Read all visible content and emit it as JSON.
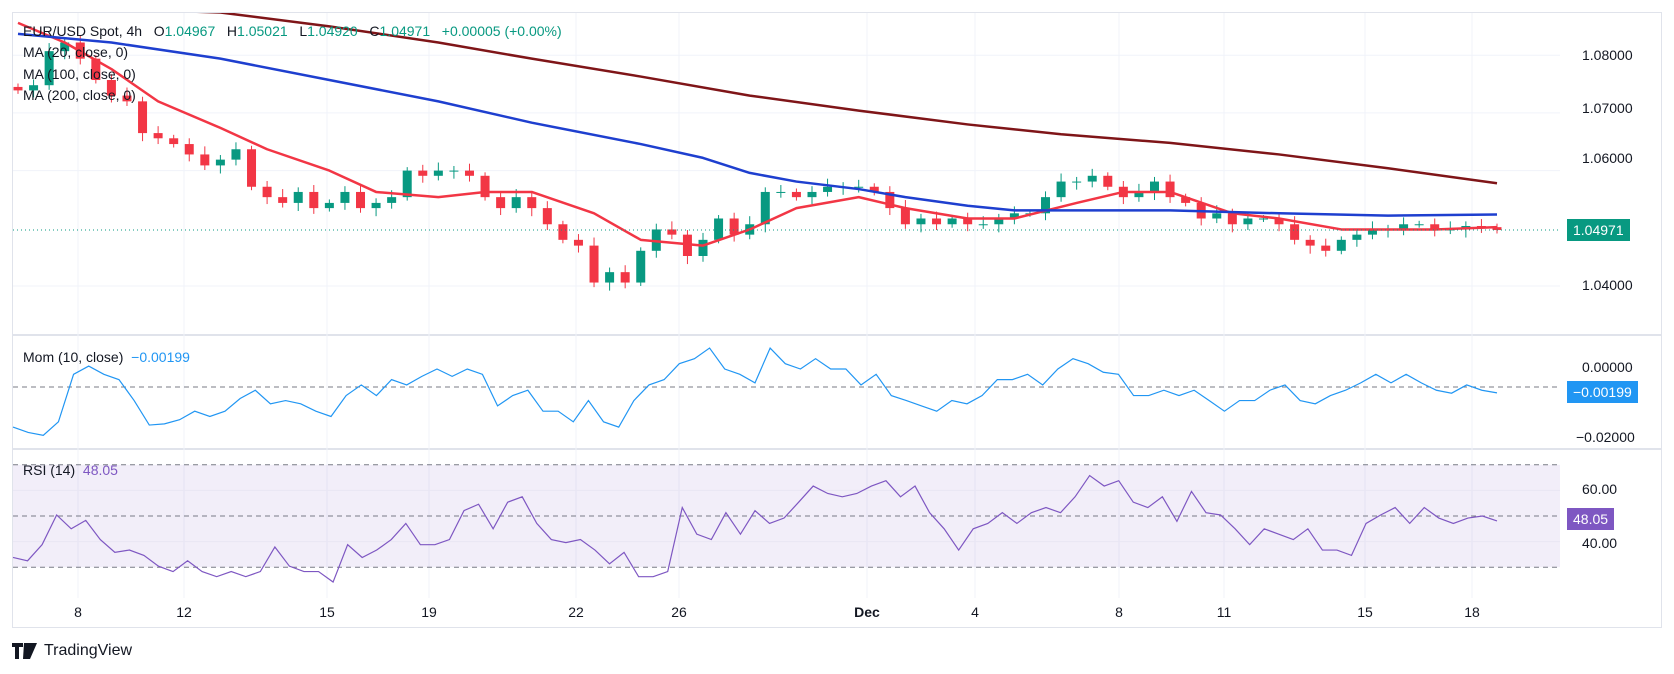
{
  "legend": {
    "symbol": "EUR/USD Spot, 4h",
    "o_label": "O",
    "o": "1.04967",
    "h_label": "H",
    "h": "1.05021",
    "l_label": "L",
    "l": "1.04920",
    "c_label": "C",
    "c": "1.04971",
    "change": "+0.00005 (+0.00%)",
    "ma20": "MA (20, close, 0)",
    "ma100": "MA (100, close, 0)",
    "ma200": "MA (200, close, 0)",
    "mom": "Mom (10, close)",
    "mom_value": "−0.00199",
    "rsi": "RSI (14)",
    "rsi_value": "48.05"
  },
  "price_axis": [
    "1.08000",
    "1.07000",
    "1.06000",
    "1.04000"
  ],
  "last_price": "1.04971",
  "mom_axis": [
    "0.00000",
    "−0.02000"
  ],
  "mom_badge": "−0.00199",
  "rsi_axis": [
    "60.00",
    "40.00"
  ],
  "rsi_badge": "48.05",
  "date_labels": [
    "8",
    "12",
    "15",
    "19",
    "22",
    "26",
    "Dec",
    "4",
    "8",
    "11",
    "15",
    "18"
  ],
  "brand": "TradingView",
  "colors": {
    "up": "#089981",
    "down": "#F23645",
    "ma20": "#F23645",
    "ma100": "#1E3FCF",
    "ma200": "#7F1518",
    "mom": "#2196F3",
    "rsi": "#7E57C2"
  },
  "chart_data": [
    {
      "type": "candlestick",
      "title": "EUR/USD Spot, 4h",
      "y_ticks": [
        1.08,
        1.07,
        1.06,
        1.04
      ],
      "closes": [
        1.0739,
        1.0748,
        1.0807,
        1.0822,
        1.0794,
        1.0757,
        1.073,
        1.072,
        1.0665,
        1.0656,
        1.0646,
        1.0628,
        1.0609,
        1.0619,
        1.0637,
        1.0572,
        1.0554,
        1.0544,
        1.0563,
        1.0535,
        1.0544,
        1.0563,
        1.0535,
        1.0544,
        1.0554,
        1.06,
        1.0591,
        1.06,
        1.06,
        1.0591,
        1.0554,
        1.0535,
        1.0554,
        1.0535,
        1.0507,
        1.048,
        1.047,
        1.0406,
        1.0424,
        1.0406,
        1.0461,
        1.0498,
        1.0489,
        1.0452,
        1.048,
        1.0517,
        1.0489,
        1.0507,
        1.0563,
        1.0563,
        1.0554,
        1.0563,
        1.0572,
        1.0572,
        1.0572,
        1.0563,
        1.0535,
        1.0507,
        1.0517,
        1.0507,
        1.0517,
        1.0507,
        1.0507,
        1.0517,
        1.0526,
        1.0526,
        1.0554,
        1.0581,
        1.0581,
        1.0591,
        1.0572,
        1.0554,
        1.0563,
        1.0581,
        1.0554,
        1.0544,
        1.0517,
        1.0526,
        1.0507,
        1.0517,
        1.0517,
        1.0507,
        1.048,
        1.047,
        1.0461,
        1.048,
        1.0489,
        1.0498,
        1.0498,
        1.0507,
        1.0507,
        1.0498,
        1.0498,
        1.0504,
        1.0502,
        1.0497
      ],
      "series": [
        {
          "name": "MA (20, close, 0)",
          "points": [
            [
              0,
              1.0856
            ],
            [
              3,
              1.0822
            ],
            [
              6,
              1.0776
            ],
            [
              9,
              1.072
            ],
            [
              13,
              1.0674
            ],
            [
              16,
              1.0637
            ],
            [
              20,
              1.06
            ],
            [
              23,
              1.0563
            ],
            [
              27,
              1.0554
            ],
            [
              30,
              1.0563
            ],
            [
              33,
              1.0563
            ],
            [
              37,
              1.0526
            ],
            [
              40,
              1.048
            ],
            [
              44,
              1.047
            ],
            [
              47,
              1.0498
            ],
            [
              50,
              1.0535
            ],
            [
              54,
              1.0554
            ],
            [
              57,
              1.0535
            ],
            [
              61,
              1.0517
            ],
            [
              64,
              1.0517
            ],
            [
              68,
              1.0544
            ],
            [
              71,
              1.0563
            ],
            [
              74,
              1.0563
            ],
            [
              78,
              1.0526
            ],
            [
              81,
              1.0517
            ],
            [
              85,
              1.0498
            ],
            [
              88,
              1.0498
            ],
            [
              91,
              1.0498
            ],
            [
              95,
              1.0502
            ]
          ]
        },
        {
          "name": "MA (100, close, 0)",
          "points": [
            [
              0,
              1.0837
            ],
            [
              6,
              1.0822
            ],
            [
              13,
              1.0794
            ],
            [
              20,
              1.0757
            ],
            [
              27,
              1.072
            ],
            [
              33,
              1.0683
            ],
            [
              40,
              1.0646
            ],
            [
              44,
              1.0622
            ],
            [
              47,
              1.0596
            ],
            [
              50,
              1.0581
            ],
            [
              54,
              1.0568
            ],
            [
              57,
              1.0554
            ],
            [
              61,
              1.0539
            ],
            [
              64,
              1.0531
            ],
            [
              67,
              1.0531
            ],
            [
              74,
              1.0531
            ],
            [
              81,
              1.0526
            ],
            [
              88,
              1.0522
            ],
            [
              95,
              1.0524
            ]
          ]
        },
        {
          "name": "MA (200, close, 0)",
          "points": [
            [
              13,
              1.0874
            ],
            [
              20,
              1.085
            ],
            [
              27,
              1.0822
            ],
            [
              33,
              1.0794
            ],
            [
              40,
              1.0763
            ],
            [
              47,
              1.073
            ],
            [
              54,
              1.0704
            ],
            [
              61,
              1.068
            ],
            [
              67,
              1.0663
            ],
            [
              74,
              1.0648
            ],
            [
              81,
              1.0628
            ],
            [
              88,
              1.0604
            ],
            [
              95,
              1.0578
            ]
          ]
        }
      ]
    },
    {
      "type": "line",
      "title": "Mom (10, close)",
      "y_ticks": [
        0,
        -0.02
      ],
      "values": [
        -0.0136,
        -0.0154,
        -0.0164,
        -0.0118,
        0.0043,
        0.0071,
        0.0043,
        0.0025,
        -0.0046,
        -0.0129,
        -0.0125,
        -0.0111,
        -0.0082,
        -0.01,
        -0.0082,
        -0.0039,
        -0.0011,
        -0.0057,
        -0.0046,
        -0.0057,
        -0.0082,
        -0.01,
        -0.0029,
        0.0007,
        -0.0029,
        0.0025,
        0.0007,
        0.0036,
        0.0061,
        0.0036,
        0.0061,
        0.0043,
        -0.0064,
        -0.0029,
        -0.0011,
        -0.0082,
        -0.0082,
        -0.0118,
        -0.0046,
        -0.0118,
        -0.0136,
        -0.0046,
        0.0007,
        0.0025,
        0.0079,
        0.0096,
        0.0132,
        0.0061,
        0.0043,
        0.0014,
        0.0132,
        0.0079,
        0.0061,
        0.0096,
        0.0061,
        0.0061,
        0.0007,
        0.0043,
        -0.0029,
        -0.0046,
        -0.0064,
        -0.0082,
        -0.0046,
        -0.0057,
        -0.0029,
        0.0025,
        0.0025,
        0.0043,
        0.0007,
        0.0061,
        0.0096,
        0.0079,
        0.005,
        0.0043,
        -0.0029,
        -0.0029,
        -0.0011,
        -0.0029,
        -0.0011,
        -0.0046,
        -0.0082,
        -0.0046,
        -0.0046,
        -0.0011,
        0.0007,
        -0.0046,
        -0.0057,
        -0.0029,
        -0.0011,
        0.0014,
        0.0043,
        0.0014,
        0.0043,
        0.0014,
        -0.0011,
        -0.0021,
        0.0007,
        -0.0011,
        -0.00199
      ]
    },
    {
      "type": "line",
      "title": "RSI (14)",
      "y_ticks": [
        60,
        40
      ],
      "band": [
        30,
        70
      ],
      "midline": 50,
      "values": [
        33.8,
        32.5,
        38.8,
        50.4,
        45,
        48.3,
        40.8,
        35.8,
        36.7,
        34.6,
        30.4,
        28.3,
        32.5,
        28.3,
        26.3,
        28.3,
        26.3,
        28.3,
        37.9,
        30.4,
        28.3,
        28.3,
        24.2,
        38.8,
        33.8,
        36.7,
        40.8,
        47.1,
        38.8,
        38.8,
        40.8,
        52.1,
        54.6,
        45,
        55.4,
        57.5,
        47.1,
        40.8,
        39.6,
        40.8,
        36.7,
        31.3,
        35.8,
        26.3,
        26.3,
        28.3,
        53.3,
        42.9,
        40.8,
        51.3,
        42.9,
        52.1,
        47.1,
        49.2,
        55.4,
        61.7,
        58.8,
        57.5,
        58.8,
        61.7,
        63.8,
        57.5,
        61.7,
        51.3,
        45,
        36.7,
        45,
        47.1,
        51.3,
        47.1,
        51.3,
        53.3,
        51.3,
        57.5,
        65.8,
        61.7,
        63.8,
        55.4,
        53.3,
        57.5,
        47.9,
        59.6,
        51.3,
        50.4,
        45,
        38.8,
        45,
        42.9,
        40.8,
        45,
        36.7,
        36.7,
        34.6,
        47.1,
        50.4,
        53.3,
        47.1,
        53.3,
        49.2,
        47.1,
        49.2,
        50,
        48.05
      ]
    }
  ]
}
